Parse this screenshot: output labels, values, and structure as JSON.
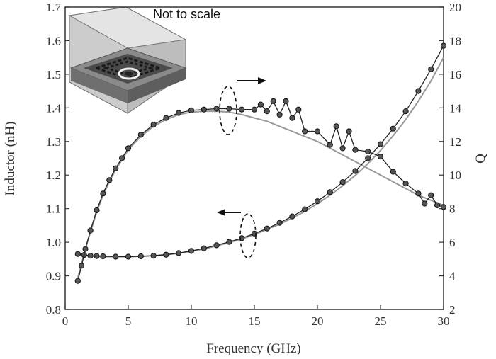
{
  "chart_data": {
    "type": "scatter",
    "title": "",
    "xlabel": "Frequency (GHz)",
    "ylabel": "Inductor (nH)",
    "ylabel_right": "Q",
    "xlim": [
      0,
      30
    ],
    "ylim": [
      0.8,
      1.7
    ],
    "ylim_right": [
      2,
      20
    ],
    "x_ticks": [
      "0",
      "5",
      "10",
      "15",
      "20",
      "25",
      "30"
    ],
    "y_ticks": [
      "0.8",
      "0.9",
      "1.0",
      "1.1",
      "1.2",
      "1.3",
      "1.4",
      "1.5",
      "1.6",
      "1.7"
    ],
    "y_ticks_right": [
      "2",
      "4",
      "6",
      "8",
      "10",
      "12",
      "14",
      "16",
      "18",
      "20"
    ],
    "grid": false,
    "annotation": "Not to scale",
    "series": [
      {
        "axis": "left",
        "style": "measured",
        "color": "#222222",
        "x": [
          1,
          1.5,
          2,
          2.5,
          3,
          4,
          5,
          6,
          7,
          8,
          9,
          10,
          11,
          12,
          13,
          14,
          15,
          16,
          17,
          18,
          19,
          20,
          21,
          22,
          23,
          24,
          25,
          26,
          27,
          28,
          29,
          30
        ],
        "values": [
          0.965,
          0.962,
          0.96,
          0.959,
          0.958,
          0.957,
          0.957,
          0.958,
          0.96,
          0.963,
          0.968,
          0.974,
          0.982,
          0.991,
          1.001,
          1.012,
          1.026,
          1.041,
          1.058,
          1.077,
          1.098,
          1.122,
          1.149,
          1.179,
          1.212,
          1.25,
          1.292,
          1.338,
          1.39,
          1.45,
          1.515,
          1.585
        ]
      },
      {
        "axis": "left",
        "style": "model",
        "color": "#999999",
        "x": [
          1,
          1.5,
          2,
          2.5,
          3,
          4,
          5,
          6,
          7,
          8,
          9,
          10,
          11,
          12,
          13,
          14,
          15,
          16,
          17,
          18,
          19,
          20,
          21,
          22,
          23,
          24,
          25,
          26,
          27,
          28,
          29,
          30
        ],
        "values": [
          0.962,
          0.96,
          0.959,
          0.958,
          0.957,
          0.957,
          0.957,
          0.958,
          0.96,
          0.963,
          0.967,
          0.973,
          0.98,
          0.989,
          0.999,
          1.01,
          1.023,
          1.038,
          1.054,
          1.072,
          1.092,
          1.115,
          1.14,
          1.168,
          1.199,
          1.234,
          1.273,
          1.317,
          1.365,
          1.42,
          1.48,
          1.55
        ]
      },
      {
        "axis": "right",
        "style": "measured",
        "color": "#222222",
        "x": [
          1,
          1.3,
          1.6,
          2,
          2.5,
          3,
          3.5,
          4,
          4.5,
          5,
          6,
          7,
          8,
          9,
          10,
          11,
          12,
          13,
          14,
          15,
          15.5,
          16,
          16.5,
          17,
          17.5,
          18,
          18.5,
          19,
          20,
          21,
          21.5,
          22,
          22.5,
          23,
          24,
          25,
          26,
          27,
          28,
          28.5,
          29,
          29.5,
          30
        ],
        "values": [
          3.7,
          4.6,
          5.6,
          6.7,
          7.9,
          8.9,
          9.7,
          10.4,
          11.0,
          11.6,
          12.4,
          13.0,
          13.4,
          13.7,
          13.85,
          13.9,
          13.95,
          13.95,
          13.9,
          13.9,
          14.2,
          13.8,
          14.4,
          13.6,
          14.4,
          13.4,
          13.9,
          12.6,
          12.6,
          11.8,
          12.9,
          11.6,
          12.6,
          11.5,
          11.4,
          11.1,
          10.2,
          9.5,
          8.9,
          8.3,
          8.8,
          8.2,
          8.1
        ]
      },
      {
        "axis": "right",
        "style": "model",
        "color": "#999999",
        "x": [
          1,
          1.3,
          1.6,
          2,
          2.5,
          3,
          3.5,
          4,
          4.5,
          5,
          6,
          7,
          8,
          9,
          10,
          11,
          12,
          13,
          14,
          15,
          16,
          17,
          18,
          19,
          20,
          21,
          22,
          23,
          24,
          25,
          26,
          27,
          28,
          29,
          30
        ],
        "values": [
          3.9,
          4.7,
          5.6,
          6.6,
          7.8,
          8.8,
          9.6,
          10.3,
          10.9,
          11.5,
          12.3,
          12.9,
          13.3,
          13.6,
          13.75,
          13.8,
          13.8,
          13.75,
          13.6,
          13.4,
          13.2,
          12.9,
          12.6,
          12.3,
          12.0,
          11.6,
          11.2,
          10.8,
          10.4,
          10.0,
          9.6,
          9.2,
          8.8,
          8.5,
          8.2
        ]
      }
    ]
  }
}
